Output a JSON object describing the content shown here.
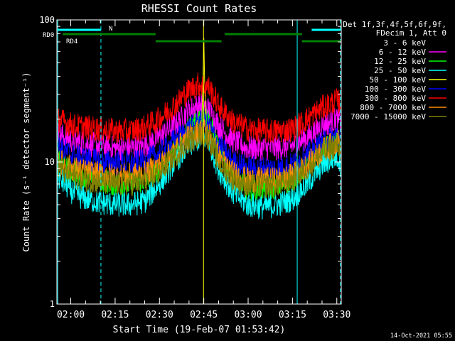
{
  "chart_data": {
    "type": "line",
    "title": "RHESSI Count Rates",
    "xlabel": "Start Time (19-Feb-07 01:53:42)",
    "ylabel": "Count Rate (s⁻¹ detector segment⁻¹)",
    "yscale": "log",
    "ylim": [
      1,
      100
    ],
    "xlim_minutes": [
      115.3,
      211.5
    ],
    "x_tick_labels": [
      "02:00",
      "02:15",
      "02:30",
      "02:45",
      "03:00",
      "03:15",
      "03:30"
    ],
    "x_tick_minutes": [
      120,
      135,
      150,
      165,
      180,
      195,
      210
    ],
    "y_tick_labels": [
      "1",
      "10",
      "100"
    ],
    "y_tick_values": [
      1,
      10,
      100
    ],
    "legend_position": "right-outside",
    "legend_header": [
      "Det 1f,3f,4f,5f,6f,9f,",
      "FDecim 1, Att 0"
    ],
    "series": [
      {
        "name": "3 - 6 keV",
        "color": "#000000",
        "x": [
          115.5,
          118,
          121,
          125,
          130,
          135,
          140,
          145,
          150,
          155,
          160,
          163,
          165,
          167,
          170,
          175,
          180,
          185,
          190,
          195,
          200,
          205,
          210,
          211.3
        ],
        "y": [
          7.5,
          5.5,
          4.2,
          3.5,
          3.1,
          3.0,
          3.0,
          3.4,
          5.0,
          8.0,
          11.5,
          12.8,
          13.0,
          12.0,
          8.0,
          4.5,
          3.3,
          3.1,
          3.2,
          3.7,
          5.0,
          7.5,
          10.5,
          11.0
        ]
      },
      {
        "name": "6 - 12 keV",
        "color": "#ff00ff",
        "x": [
          115.5,
          118,
          121,
          125,
          130,
          135,
          140,
          145,
          150,
          155,
          160,
          163,
          165,
          167,
          170,
          175,
          180,
          185,
          190,
          195,
          200,
          205,
          210,
          211.3
        ],
        "y": [
          16,
          15,
          14,
          13.5,
          13,
          12.5,
          12.5,
          13,
          15,
          18,
          23,
          25,
          25,
          23,
          18,
          14,
          12.5,
          12.5,
          12.5,
          13,
          15,
          18,
          20,
          19
        ]
      },
      {
        "name": "12 - 25 keV",
        "color": "#00ff00",
        "x": [
          115.5,
          118,
          121,
          125,
          130,
          135,
          140,
          145,
          150,
          155,
          160,
          163,
          165,
          167,
          170,
          175,
          180,
          185,
          190,
          195,
          200,
          205,
          210,
          211.3
        ],
        "y": [
          10,
          9,
          8.5,
          8,
          7.5,
          7,
          7,
          7.5,
          9,
          12,
          17,
          20,
          22,
          19,
          12,
          8,
          6.5,
          6.5,
          6.7,
          7.5,
          9.5,
          12,
          14,
          13.5
        ]
      },
      {
        "name": "25 - 50 keV",
        "color": "#00ffff",
        "x": [
          115.5,
          118,
          121,
          125,
          130,
          135,
          140,
          145,
          150,
          155,
          160,
          163,
          165,
          167,
          170,
          175,
          180,
          185,
          190,
          195,
          200,
          205,
          210,
          211.3
        ],
        "y": [
          8,
          7,
          6,
          5.5,
          5.2,
          5,
          5,
          5.3,
          7,
          10,
          13,
          14.5,
          15,
          13.5,
          9,
          6,
          5,
          4.8,
          5,
          5.5,
          7,
          9.5,
          11,
          10
        ]
      },
      {
        "name": "50 - 100 keV",
        "color": "#ffff00",
        "x": [
          164.3,
          164.7,
          165,
          165.3,
          165.7
        ],
        "y": [
          20,
          35,
          75,
          35,
          20
        ]
      },
      {
        "name": "100 - 300 keV",
        "color": "#0000ff",
        "x": [
          115.5,
          118,
          121,
          125,
          130,
          135,
          140,
          145,
          150,
          155,
          160,
          163,
          165,
          167,
          170,
          175,
          180,
          185,
          190,
          195,
          200,
          205,
          210,
          211.3
        ],
        "y": [
          13,
          12,
          11,
          10.5,
          10,
          9.8,
          9.8,
          10,
          11.5,
          14,
          17,
          18.5,
          19,
          17.5,
          13,
          10,
          9,
          9,
          9,
          9.5,
          11,
          13.5,
          15.5,
          15
        ]
      },
      {
        "name": "300 - 800 keV",
        "color": "#ff0000",
        "x": [
          115.5,
          118,
          121,
          125,
          130,
          135,
          140,
          145,
          150,
          155,
          160,
          163,
          165,
          167,
          170,
          175,
          180,
          185,
          190,
          195,
          200,
          205,
          210,
          211.3
        ],
        "y": [
          20,
          19,
          18,
          17.5,
          17,
          16.5,
          16.5,
          17.5,
          20,
          25,
          32,
          35,
          35,
          33,
          25,
          19,
          17,
          16.5,
          16.5,
          17,
          20,
          24,
          27,
          26
        ]
      },
      {
        "name": "800 - 7000 keV",
        "color": "#ff8c00",
        "x": [
          115.5,
          118,
          121,
          125,
          130,
          135,
          140,
          145,
          150,
          155,
          160,
          163,
          165,
          167,
          170,
          175,
          180,
          185,
          190,
          195,
          200,
          205,
          210,
          211.3
        ],
        "y": [
          10.5,
          9.5,
          9,
          8.5,
          8.2,
          8,
          8,
          8.3,
          9.5,
          12,
          15,
          16.5,
          17,
          15.5,
          11,
          8.3,
          7.5,
          7.5,
          7.5,
          8,
          9.5,
          12,
          14,
          13.5
        ]
      },
      {
        "name": "7000 - 15000 keV",
        "color": "#808000",
        "x": [
          115.5,
          118,
          121,
          125,
          130,
          135,
          140,
          145,
          150,
          155,
          160,
          163,
          165,
          167,
          170,
          175,
          180,
          185,
          190,
          195,
          200,
          205,
          210,
          211.3
        ],
        "y": [
          9.5,
          8.5,
          8,
          7.5,
          7.2,
          7,
          7,
          7.3,
          8.5,
          11,
          14,
          15.5,
          16,
          14.5,
          10,
          7.5,
          6.8,
          6.8,
          6.9,
          7.5,
          9,
          11.5,
          13,
          12.5
        ]
      }
    ],
    "flag_bars": [
      {
        "label": "N",
        "color": "#00ffff",
        "level": 3,
        "segments": [
          [
            115.5,
            130.2
          ],
          [
            201.5,
            211.3
          ]
        ]
      },
      {
        "label": "RD0",
        "color": "#008000",
        "level": 2,
        "segments": [
          [
            117.3,
            148.7
          ],
          [
            172.1,
            198.2
          ]
        ]
      },
      {
        "label": "RD4",
        "color": "#008000",
        "level": 1,
        "segments": [
          [
            148.7,
            171.0
          ],
          [
            198.2,
            211.3
          ]
        ]
      }
    ],
    "vertical_markers": [
      {
        "color": "#00ffff",
        "style": "solid",
        "x": 115.6
      },
      {
        "color": "#00ffff",
        "style": "dashed",
        "x": 130.2
      },
      {
        "color": "#00ffff",
        "style": "solid",
        "x": 196.6
      },
      {
        "color": "#00ffff",
        "style": "dashed",
        "x": 211.2
      },
      {
        "color": "#ffff00",
        "style": "solid",
        "x": 164.9
      }
    ]
  },
  "footer": {
    "timestamp": "14-Oct-2021 05:55"
  }
}
